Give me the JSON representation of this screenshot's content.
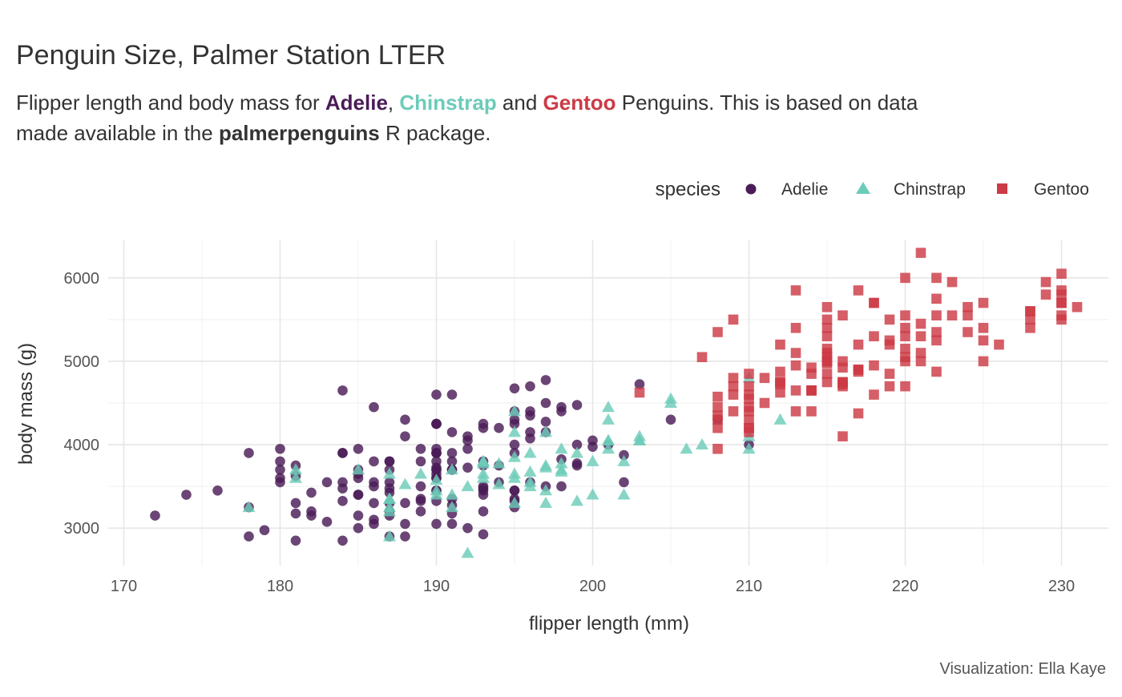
{
  "title": "Penguin Size, Palmer Station LTER",
  "subtitle": {
    "line1_a": "Flipper length and body mass for ",
    "adelie": "Adelie",
    "comma": ", ",
    "chinstrap": "Chinstrap",
    "and": " and ",
    "gentoo": "Gentoo",
    "line1_b": " Penguins. This is based on data",
    "line2_a": "made available in the ",
    "package": "palmerpenguins",
    "line2_b": " R package."
  },
  "caption": "Visualization: Ella Kaye",
  "colors": {
    "Adelie": "#4b1c57",
    "Chinstrap": "#6cccb8",
    "Gentoo": "#cc3a46"
  },
  "chart_data": {
    "type": "scatter",
    "title": "Penguin Size, Palmer Station LTER",
    "xlabel": "flipper length (mm)",
    "ylabel": "body mass (g)",
    "xlim": [
      169,
      233
    ],
    "ylim": [
      2550,
      6450
    ],
    "xticks": [
      170,
      180,
      190,
      200,
      210,
      220,
      230
    ],
    "yticks": [
      3000,
      4000,
      5000,
      6000
    ],
    "grid": true,
    "legend": {
      "title": "species",
      "position": "top-right",
      "entries": [
        "Adelie",
        "Chinstrap",
        "Gentoo"
      ]
    },
    "series": [
      {
        "name": "Adelie",
        "marker": "circle",
        "x": [
          181,
          186,
          195,
          193,
          190,
          181,
          195,
          193,
          190,
          186,
          180,
          182,
          191,
          198,
          185,
          195,
          197,
          184,
          194,
          174,
          180,
          189,
          185,
          180,
          187,
          183,
          187,
          172,
          180,
          178,
          178,
          188,
          184,
          195,
          196,
          190,
          180,
          181,
          184,
          182,
          195,
          186,
          196,
          185,
          190,
          182,
          179,
          190,
          191,
          186,
          188,
          190,
          200,
          187,
          191,
          186,
          193,
          181,
          194,
          185,
          195,
          185,
          192,
          184,
          192,
          195,
          188,
          190,
          198,
          190,
          190,
          196,
          197,
          190,
          195,
          191,
          184,
          187,
          195,
          189,
          196,
          187,
          193,
          191,
          194,
          190,
          189,
          189,
          190,
          202,
          205,
          185,
          186,
          187,
          208,
          190,
          196,
          178,
          192,
          192,
          203,
          183,
          190,
          193,
          184,
          199,
          190,
          181,
          197,
          198,
          191,
          193,
          197,
          191,
          196,
          188,
          199,
          189,
          189,
          187,
          198,
          176,
          202,
          186,
          199,
          191,
          195,
          191,
          210,
          190,
          197,
          193,
          199,
          187,
          190,
          191,
          200,
          185,
          193,
          193,
          187,
          188,
          190,
          192,
          185,
          190,
          184,
          195,
          193,
          187,
          201
        ],
        "y": [
          3750,
          3800,
          3250,
          3450,
          3650,
          3625,
          4675,
          3475,
          4250,
          3300,
          3700,
          3200,
          3800,
          4400,
          3700,
          3450,
          4500,
          3325,
          4200,
          3400,
          3600,
          3800,
          3950,
          3800,
          3800,
          3550,
          3200,
          3150,
          3950,
          3250,
          3900,
          3300,
          3900,
          3325,
          4150,
          3950,
          3550,
          3300,
          4650,
          3150,
          3900,
          3100,
          4400,
          3000,
          4600,
          3425,
          2975,
          3450,
          4150,
          3500,
          4300,
          3450,
          4050,
          2900,
          3700,
          3550,
          3800,
          2850,
          3750,
          3150,
          4400,
          3600,
          4050,
          2850,
          3950,
          3350,
          4100,
          3050,
          4450,
          3600,
          3900,
          3550,
          4150,
          3700,
          4250,
          3700,
          3900,
          3550,
          4000,
          3200,
          4700,
          3800,
          4200,
          3350,
          3550,
          3800,
          3500,
          3950,
          3600,
          3550,
          4300,
          3400,
          4450,
          3300,
          4300,
          3700,
          4350,
          2900,
          4100,
          3725,
          4725,
          3075,
          4250,
          2925,
          3550,
          3750,
          3900,
          3175,
          4775,
          3825,
          4600,
          3200,
          4275,
          3900,
          4075,
          2900,
          3775,
          3350,
          3325,
          3150,
          3500,
          3450,
          3875,
          3050,
          4000,
          3275,
          4300,
          3050,
          4000,
          3325,
          3500,
          3500,
          4475,
          3425,
          3900,
          3175,
          3975,
          3400,
          4250,
          3400,
          3475,
          3050,
          3725,
          3000,
          3650,
          4250,
          3475,
          3450,
          3750,
          3700,
          4000
        ]
      },
      {
        "name": "Chinstrap",
        "marker": "triangle",
        "x": [
          192,
          196,
          193,
          188,
          197,
          198,
          178,
          197,
          195,
          198,
          193,
          194,
          185,
          201,
          190,
          201,
          197,
          181,
          190,
          195,
          181,
          191,
          187,
          193,
          195,
          197,
          200,
          200,
          191,
          205,
          187,
          201,
          187,
          203,
          195,
          199,
          195,
          210,
          192,
          205,
          210,
          187,
          196,
          196,
          196,
          201,
          190,
          212,
          187,
          198,
          199,
          201,
          193,
          203,
          187,
          197,
          191,
          203,
          202,
          194,
          206,
          189,
          195,
          207,
          202,
          193,
          210,
          198
        ],
        "y": [
          3500,
          3900,
          3650,
          3525,
          3725,
          3950,
          3250,
          3750,
          4150,
          3700,
          3800,
          3775,
          3700,
          4050,
          3575,
          4050,
          3300,
          3700,
          3450,
          4400,
          3600,
          3400,
          2900,
          3800,
          3300,
          4150,
          3400,
          3800,
          3700,
          4550,
          3200,
          4300,
          3350,
          4100,
          3600,
          3900,
          3850,
          4800,
          2700,
          4500,
          3950,
          3650,
          3550,
          3500,
          3675,
          4450,
          3400,
          4300,
          3250,
          3675,
          3325,
          3950,
          3600,
          4050,
          3350,
          3450,
          3250,
          4050,
          3800,
          3525,
          3950,
          3650,
          3650,
          4000,
          3400,
          3775,
          4100,
          3775
        ]
      },
      {
        "name": "Gentoo",
        "marker": "square",
        "x": [
          211,
          230,
          210,
          218,
          215,
          210,
          211,
          219,
          209,
          215,
          214,
          216,
          214,
          213,
          210,
          217,
          210,
          221,
          209,
          222,
          218,
          215,
          213,
          215,
          215,
          215,
          216,
          215,
          210,
          220,
          222,
          209,
          207,
          230,
          220,
          220,
          213,
          219,
          208,
          208,
          208,
          225,
          210,
          216,
          222,
          217,
          210,
          225,
          213,
          215,
          210,
          220,
          210,
          225,
          217,
          220,
          208,
          220,
          208,
          224,
          208,
          221,
          214,
          231,
          219,
          230,
          214,
          229,
          220,
          223,
          216,
          221,
          221,
          217,
          216,
          230,
          209,
          220,
          215,
          223,
          212,
          221,
          212,
          224,
          212,
          228,
          218,
          218,
          212,
          230,
          218,
          228,
          212,
          224,
          214,
          226,
          216,
          222,
          203,
          225,
          219,
          228,
          215,
          228,
          216,
          215,
          210,
          219,
          208,
          209,
          216,
          229,
          213,
          230,
          217,
          230,
          217,
          222,
          214,
          215,
          222,
          212,
          213
        ],
        "y": [
          4500,
          5700,
          4450,
          5700,
          5400,
          4550,
          4800,
          5200,
          4400,
          5150,
          4650,
          5550,
          4650,
          5850,
          4200,
          5850,
          4150,
          6300,
          4800,
          5350,
          5700,
          5000,
          4400,
          5050,
          5000,
          5100,
          4100,
          5650,
          4600,
          5550,
          5250,
          4700,
          5050,
          6050,
          5150,
          5400,
          4950,
          5250,
          4350,
          5350,
          3950,
          5700,
          4300,
          4750,
          5550,
          4900,
          4200,
          5400,
          5100,
          5300,
          4850,
          5300,
          4400,
          5000,
          4900,
          5050,
          4300,
          5000,
          4450,
          5550,
          4200,
          5300,
          4400,
          5650,
          4700,
          5700,
          4650,
          5800,
          4700,
          5550,
          4750,
          5000,
          5100,
          5200,
          4700,
          5800,
          4600,
          6000,
          4750,
          5950,
          4625,
          5450,
          4725,
          5350,
          4750,
          5600,
          4600,
          5300,
          4875,
          5550,
          4950,
          5400,
          4750,
          5650,
          4850,
          5200,
          4925,
          4875,
          4625,
          5250,
          4850,
          5600,
          4975,
          5500,
          4725,
          5500,
          4700,
          5500,
          4575,
          5500,
          5000,
          5950,
          4650,
          5500,
          4375,
          5850,
          4875,
          6000,
          4925,
          4850,
          5750,
          5200,
          5400
        ]
      }
    ]
  }
}
